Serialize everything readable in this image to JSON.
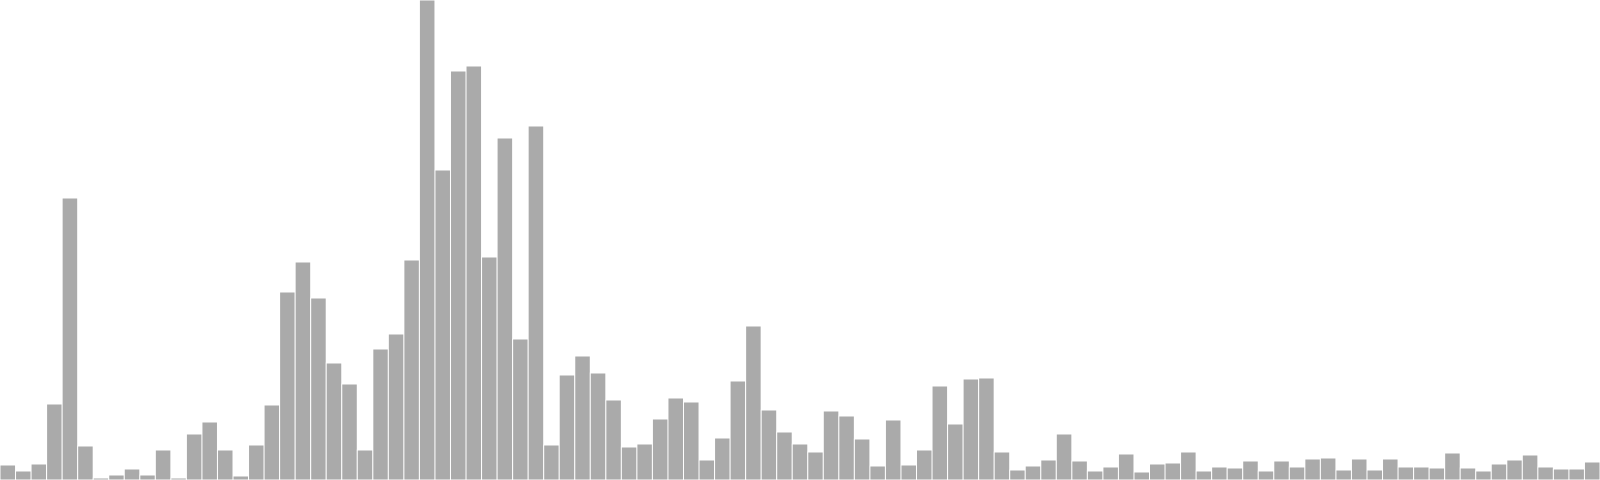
{
  "chart_data": {
    "type": "bar",
    "bar_color": "#aaaaaa",
    "bar_stroke": "#ffffff",
    "ylim": [
      0,
      480
    ],
    "values": [
      15,
      9,
      16,
      76,
      282,
      34,
      2,
      5,
      11,
      5,
      30,
      2,
      46,
      58,
      30,
      4,
      35,
      75,
      188,
      218,
      182,
      117,
      96,
      30,
      131,
      146,
      220,
      480,
      310,
      409,
      414,
      223,
      342,
      141,
      354,
      35,
      105,
      124,
      107,
      80,
      33,
      36,
      61,
      82,
      78,
      20,
      42,
      99,
      154,
      70,
      48,
      36,
      28,
      69,
      64,
      41,
      14,
      60,
      15,
      30,
      94,
      56,
      101,
      102,
      28,
      10,
      14,
      20,
      46,
      19,
      9,
      13,
      26,
      8,
      16,
      17,
      28,
      9,
      13,
      12,
      19,
      9,
      19,
      13,
      21,
      22,
      10,
      21,
      10,
      21,
      13,
      13,
      12,
      27,
      12,
      9,
      16,
      20,
      25,
      13,
      11,
      11,
      18
    ]
  }
}
